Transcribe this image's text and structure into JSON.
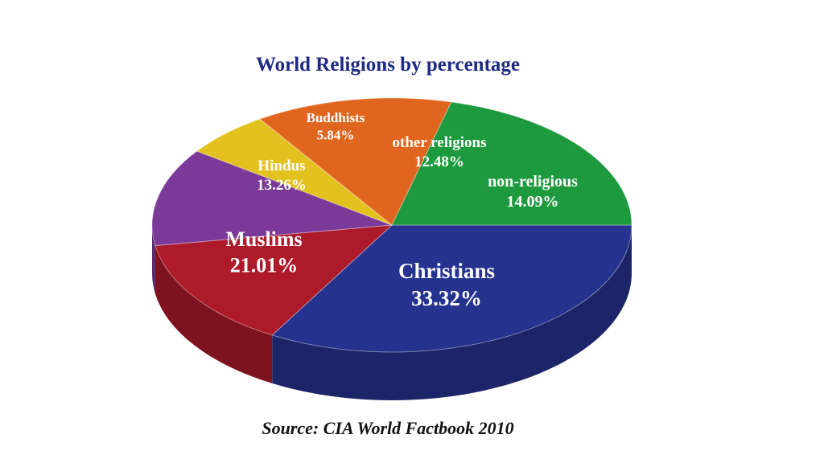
{
  "chart_data": {
    "type": "pie",
    "style": "3d",
    "title": "World Religions by percentage",
    "source": "Source: CIA World Factbook 2010",
    "slices": [
      {
        "label": "Christians",
        "value": 33.32,
        "value_text": "33.32%",
        "color": "#25338f"
      },
      {
        "label": "non-religious",
        "value": 14.09,
        "value_text": "14.09%",
        "color": "#ad1a2a"
      },
      {
        "label": "other religions",
        "value": 12.48,
        "value_text": "12.48%",
        "color": "#7b3a98"
      },
      {
        "label": "Buddhists",
        "value": 5.84,
        "value_text": "5.84%",
        "color": "#e3c11e"
      },
      {
        "label": "Hindus",
        "value": 13.26,
        "value_text": "13.26%",
        "color": "#e0661f"
      },
      {
        "label": "Muslims",
        "value": 21.01,
        "value_text": "21.01%",
        "color": "#1d9a3d"
      }
    ]
  },
  "colors": {
    "title": "#1e2b86",
    "source": "#111111",
    "background": "#ffffff"
  }
}
